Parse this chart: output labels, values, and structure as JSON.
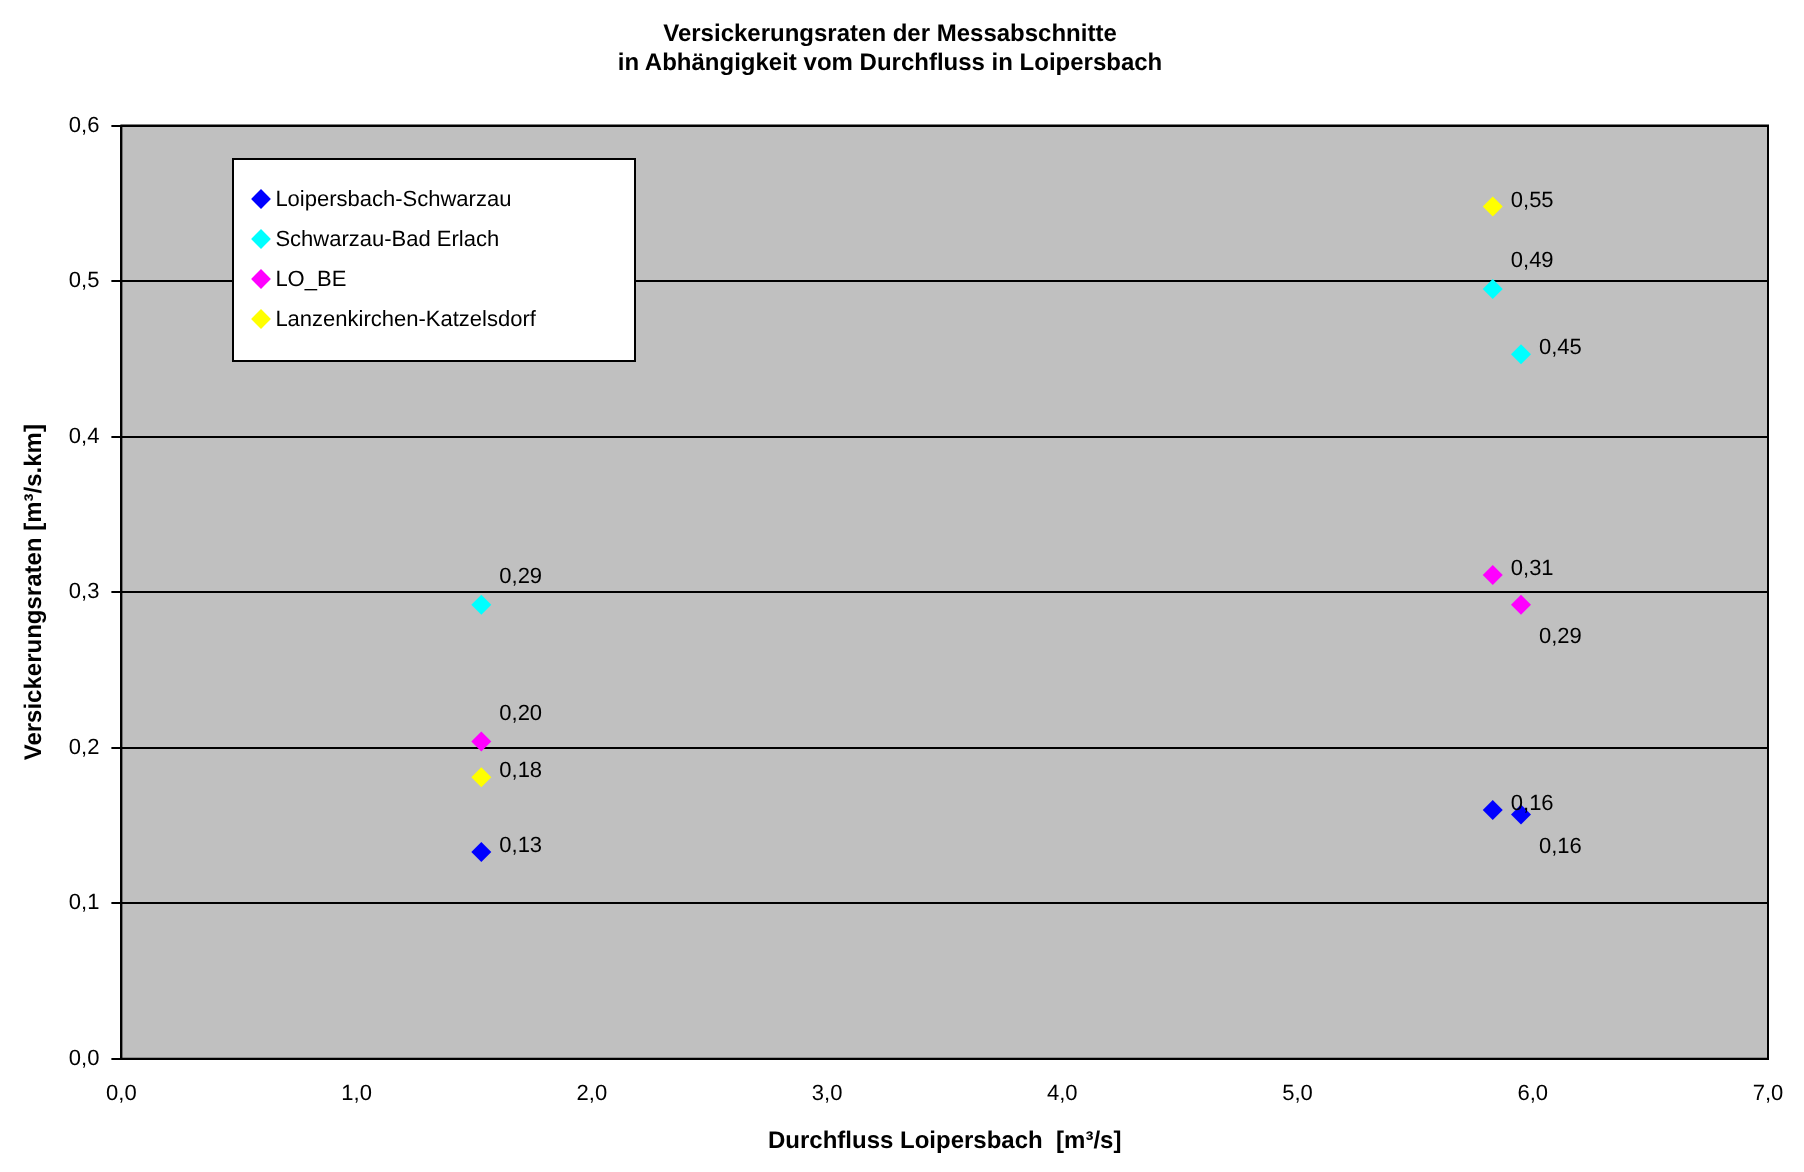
{
  "chart_data": {
    "type": "scatter",
    "title": "Versickerungsraten der Messabschnitte\nin Abhängigkeit vom Durchfluss in Loipersbach",
    "xlabel": "Durchfluss Loipersbach  [m³/s]",
    "ylabel": "Versickerungsraten [m³/s.km]",
    "series": [
      {
        "name": "Loipersbach-Schwarzau",
        "color": "#0000ff",
        "x": [
          1.53,
          5.83,
          5.95
        ],
        "values": [
          0.133,
          0.16,
          0.157
        ],
        "value_labels": [
          "0,13",
          "0,16",
          "0,16"
        ]
      },
      {
        "name": "Schwarzau-Bad Erlach",
        "color": "#00ffff",
        "x": [
          1.53,
          5.83,
          5.95
        ],
        "values": [
          0.292,
          0.495,
          0.453
        ],
        "value_labels": [
          "0,29",
          "0,49",
          "0,45"
        ]
      },
      {
        "name": "LO_BE",
        "color": "#ff00ff",
        "x": [
          1.53,
          5.83,
          5.95
        ],
        "values": [
          0.204,
          0.311,
          0.292
        ],
        "value_labels": [
          "0,20",
          "0,31",
          "0,29"
        ]
      },
      {
        "name": "Lanzenkirchen-Katzelsdorf",
        "color": "#ffff00",
        "x": [
          1.53,
          5.83
        ],
        "values": [
          0.181,
          0.548
        ],
        "value_labels": [
          "0,18",
          "0,55"
        ]
      }
    ],
    "xlim": [
      0,
      7
    ],
    "xticks": [
      {
        "value": 0,
        "label": "0,0"
      },
      {
        "value": 1,
        "label": "1,0"
      },
      {
        "value": 2,
        "label": "2,0"
      },
      {
        "value": 3,
        "label": "3,0"
      },
      {
        "value": 4,
        "label": "4,0"
      },
      {
        "value": 5,
        "label": "5,0"
      },
      {
        "value": 6,
        "label": "6,0"
      },
      {
        "value": 7,
        "label": "7,0"
      }
    ],
    "ylim": [
      0,
      0.6
    ],
    "yticks": [
      {
        "value": 0,
        "label": "0,0"
      },
      {
        "value": 0.1,
        "label": "0,1"
      },
      {
        "value": 0.2,
        "label": "0,2"
      },
      {
        "value": 0.3,
        "label": "0,3"
      },
      {
        "value": 0.4,
        "label": "0,4"
      },
      {
        "value": 0.5,
        "label": "0,5"
      },
      {
        "value": 0.6,
        "label": "0,6"
      }
    ],
    "grid": "y",
    "legend": "top left",
    "marker": "diamond"
  }
}
